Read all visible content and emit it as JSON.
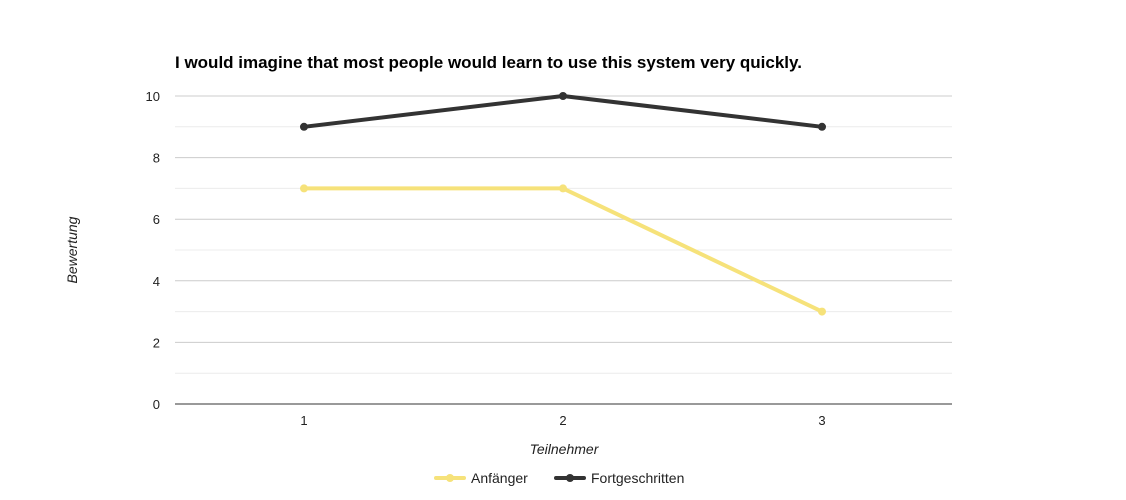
{
  "chart_data": {
    "type": "line",
    "title": "I would imagine that most people would learn to use this system very quickly.",
    "xlabel": "Teilnehmer",
    "ylabel": "Bewertung",
    "categories": [
      "1",
      "2",
      "3"
    ],
    "ylim": [
      0,
      10
    ],
    "yticks": [
      "0",
      "2",
      "4",
      "6",
      "8",
      "10"
    ],
    "grid": true,
    "legend_position": "bottom",
    "series": [
      {
        "name": "Anfänger",
        "values": [
          7,
          7,
          3
        ],
        "color": "#f6e27a"
      },
      {
        "name": "Fortgeschritten",
        "values": [
          9,
          10,
          9
        ],
        "color": "#333333"
      }
    ]
  }
}
